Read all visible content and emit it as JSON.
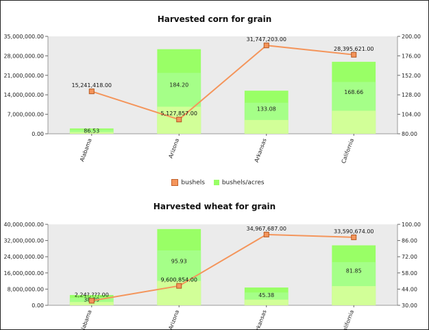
{
  "chart_data": [
    {
      "type": "bar+line",
      "title": "Harvested corn for grain",
      "categories": [
        "Alabama",
        "Arizona",
        "Arkansas",
        "California"
      ],
      "line_series": {
        "name": "bushels",
        "values": [
          15241418,
          5127857,
          31747203,
          28395621
        ],
        "labels": [
          "15,241,418.00",
          "5,127,857.00",
          "31,747,203.00",
          "28,395,621.00"
        ],
        "color": "#f4955b"
      },
      "bar_series": {
        "name": "bushels/acres",
        "values": [
          86.53,
          184.2,
          133.08,
          168.66
        ],
        "labels": [
          "86.53",
          "184.20",
          "133.08",
          "168.66"
        ],
        "color": "#99ff66"
      },
      "y_left": {
        "min": 0,
        "max": 35000000,
        "ticks": [
          "35,000,000.00",
          "28,000,000.00",
          "21,000,000.00",
          "14,000,000.00",
          "7,000,000.00",
          "0.00"
        ]
      },
      "y_right": {
        "min": 80,
        "max": 200,
        "ticks": [
          "200.00",
          "176.00",
          "152.00",
          "128.00",
          "104.00",
          "80.00"
        ]
      },
      "grid": false,
      "legend": "bottom-center"
    },
    {
      "type": "bar+line",
      "title": "Harvested wheat for grain",
      "categories": [
        "Alabama",
        "Arizona",
        "Arkansas",
        "California"
      ],
      "line_series": {
        "name": "bushels",
        "values": [
          2240000,
          9600854,
          34967687,
          33590674
        ],
        "labels": [
          "2,24?,???.00",
          "9,600,854.00",
          "34,967,687.00",
          "33,590,674.00"
        ],
        "color": "#f4955b"
      },
      "bar_series": {
        "name": "bushels/acres",
        "values": [
          38.89,
          95.93,
          45.38,
          81.85
        ],
        "labels": [
          "38.89",
          "95.93",
          "45.38",
          "81.85"
        ],
        "color": "#99ff66"
      },
      "y_left": {
        "min": 0,
        "max": 40000000,
        "ticks": [
          "40,000,000.00",
          "32,000,000.00",
          "24,000,000.00",
          "16,000,000.00",
          "8,000,000.00",
          "0.00"
        ]
      },
      "y_right": {
        "min": 30,
        "max": 100,
        "ticks": [
          "100.00",
          "86.00",
          "72.00",
          "58.00",
          "44.00",
          "30.00"
        ]
      },
      "grid": false
    }
  ],
  "legend": {
    "items": [
      {
        "name": "bushels",
        "color": "#f4955b"
      },
      {
        "name": "bushels/acres",
        "color": "#99ff66"
      }
    ]
  }
}
